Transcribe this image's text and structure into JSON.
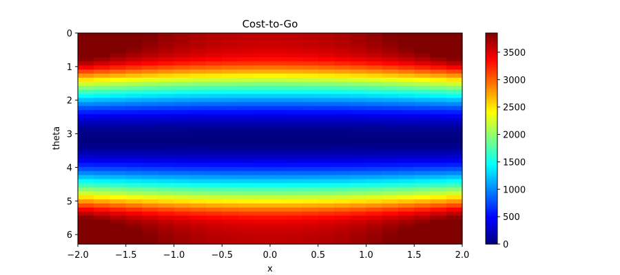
{
  "chart_data": {
    "type": "heatmap",
    "title": "Cost-to-Go",
    "xlabel": "x",
    "ylabel": "theta",
    "xlim": [
      -2.0,
      2.0
    ],
    "ylim": [
      6.283,
      0
    ],
    "x_ticks": [
      "−2.0",
      "−1.5",
      "−1.0",
      "−0.5",
      "0.0",
      "0.5",
      "1.0",
      "1.5",
      "2.0"
    ],
    "x_tick_values": [
      -2.0,
      -1.5,
      -1.0,
      -0.5,
      0.0,
      0.5,
      1.0,
      1.5,
      2.0
    ],
    "y_ticks": [
      "0",
      "1",
      "2",
      "3",
      "4",
      "5",
      "6"
    ],
    "y_tick_values": [
      0,
      1,
      2,
      3,
      4,
      5,
      6
    ],
    "colormap": "jet",
    "colorbar": {
      "min": 0,
      "max": 3850,
      "ticks": [
        "0",
        "500",
        "1000",
        "1500",
        "2000",
        "2500",
        "3000",
        "3500"
      ],
      "tick_values": [
        0,
        500,
        1000,
        1500,
        2000,
        2500,
        3000,
        3500
      ]
    },
    "grid": false
  }
}
